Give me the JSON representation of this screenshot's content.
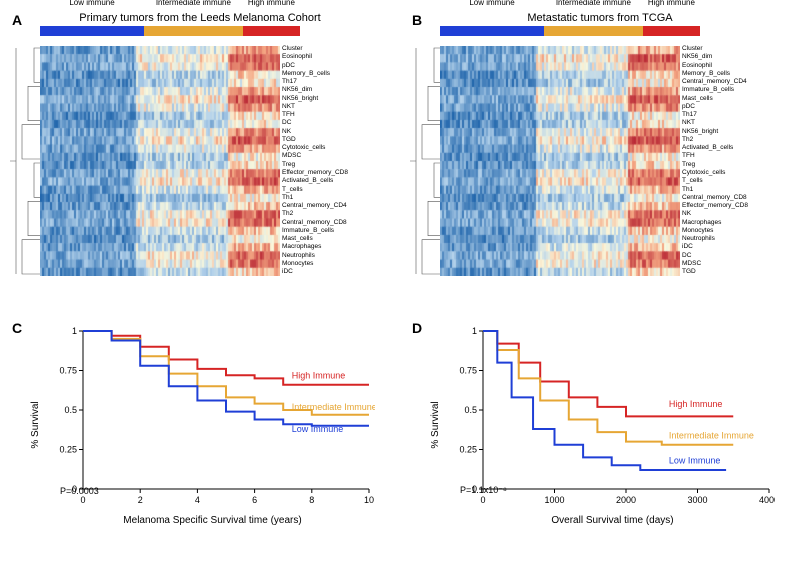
{
  "colors": {
    "low": "#1f3fd6",
    "intermediate": "#e6a634",
    "high": "#d62424",
    "heatmap_low": "#2166ac",
    "heatmap_midlow": "#92c5de",
    "heatmap_mid": "#f7f7e6",
    "heatmap_midhigh": "#f4a582",
    "heatmap_high": "#b2182b",
    "axis": "#000000"
  },
  "panelA": {
    "label": "A",
    "title": "Primary tumors from the Leeds Melanoma Cohort",
    "cluster_segments": [
      {
        "label": "Low immune",
        "frac": 0.4,
        "color_key": "low"
      },
      {
        "label": "Intermediate immune",
        "frac": 0.38,
        "color_key": "intermediate"
      },
      {
        "label": "High immune",
        "frac": 0.22,
        "color_key": "high"
      }
    ],
    "row_labels": [
      "Cluster",
      "Eosinophil",
      "pDC",
      "Memory_B_cells",
      "Th17",
      "NK56_dim",
      "NK56_bright",
      "NKT",
      "TFH",
      "DC",
      "NK",
      "TGD",
      "Cytotoxic_cells",
      "MDSC",
      "Treg",
      "Effector_memory_CD8",
      "Activated_B_cells",
      "T_cells",
      "Th1",
      "Central_memory_CD4",
      "Th2",
      "Central_memory_CD8",
      "Immature_B_cells",
      "Mast_cells",
      "Macrophages",
      "Neutrophils",
      "Monocytes",
      "iDC"
    ],
    "legend_ticks": [
      "4",
      "2",
      "0",
      "-2"
    ],
    "heatmap_cols": 120,
    "heatmap_rows": 28
  },
  "panelB": {
    "label": "B",
    "title": "Metastatic tumors from TCGA",
    "cluster_segments": [
      {
        "label": "Low immune",
        "frac": 0.4,
        "color_key": "low"
      },
      {
        "label": "Intermediate immune",
        "frac": 0.38,
        "color_key": "intermediate"
      },
      {
        "label": "High immune",
        "frac": 0.22,
        "color_key": "high"
      }
    ],
    "row_labels": [
      "Cluster",
      "NK56_dim",
      "Eosinophil",
      "Memory_B_cells",
      "Central_memory_CD4",
      "Immature_B_cells",
      "Mast_cells",
      "pDC",
      "Th17",
      "NKT",
      "NK56_bright",
      "Th2",
      "Activated_B_cells",
      "TFH",
      "Treg",
      "Cytotoxic_cells",
      "T_cells",
      "Th1",
      "Central_memory_CD8",
      "Effector_memory_CD8",
      "NK",
      "Macrophages",
      "Monocytes",
      "Neutrophils",
      "iDC",
      "DC",
      "MDSC",
      "TGD"
    ],
    "legend_ticks": [
      "4",
      "2",
      "0",
      "-2"
    ],
    "heatmap_cols": 120,
    "heatmap_rows": 28
  },
  "panelC": {
    "label": "C",
    "ylabel": "% Survival",
    "xlabel": "Melanoma Specific Survival time (years)",
    "pvalue": "P=0.0003",
    "xlim": [
      0,
      10
    ],
    "ylim": [
      0,
      1.0
    ],
    "xticks": [
      0,
      2,
      4,
      6,
      8,
      10
    ],
    "yticks": [
      0,
      0.25,
      0.5,
      0.75,
      1.0
    ],
    "curves": [
      {
        "name": "High Immune",
        "color_key": "high",
        "points": [
          [
            0,
            1.0
          ],
          [
            1,
            0.97
          ],
          [
            2,
            0.9
          ],
          [
            3,
            0.82
          ],
          [
            4,
            0.76
          ],
          [
            5,
            0.72
          ],
          [
            6,
            0.7
          ],
          [
            7,
            0.66
          ],
          [
            8,
            0.66
          ],
          [
            9,
            0.66
          ],
          [
            10,
            0.66
          ]
        ],
        "label_x": 7.3,
        "label_y": 0.7
      },
      {
        "name": "Intermediate Immune",
        "color_key": "intermediate",
        "points": [
          [
            0,
            1.0
          ],
          [
            1,
            0.95
          ],
          [
            2,
            0.84
          ],
          [
            3,
            0.73
          ],
          [
            4,
            0.65
          ],
          [
            5,
            0.58
          ],
          [
            6,
            0.54
          ],
          [
            7,
            0.5
          ],
          [
            8,
            0.47
          ],
          [
            9,
            0.47
          ],
          [
            10,
            0.47
          ]
        ],
        "label_x": 7.3,
        "label_y": 0.5
      },
      {
        "name": "Low Immune",
        "color_key": "low",
        "points": [
          [
            0,
            1.0
          ],
          [
            1,
            0.94
          ],
          [
            2,
            0.78
          ],
          [
            3,
            0.65
          ],
          [
            4,
            0.56
          ],
          [
            5,
            0.49
          ],
          [
            6,
            0.44
          ],
          [
            7,
            0.41
          ],
          [
            8,
            0.4
          ],
          [
            9,
            0.4
          ],
          [
            10,
            0.4
          ]
        ],
        "label_x": 7.3,
        "label_y": 0.36
      }
    ]
  },
  "panelD": {
    "label": "D",
    "ylabel": "% Survival",
    "xlabel": "Overall Survival time (days)",
    "pvalue": "P=1.1x10⁻⁸",
    "xlim": [
      0,
      4000
    ],
    "ylim": [
      0,
      1.0
    ],
    "xticks": [
      0,
      1000,
      2000,
      3000,
      4000
    ],
    "yticks": [
      0,
      0.25,
      0.5,
      0.75,
      1.0
    ],
    "curves": [
      {
        "name": "High Immune",
        "color_key": "high",
        "points": [
          [
            0,
            1.0
          ],
          [
            200,
            0.92
          ],
          [
            500,
            0.8
          ],
          [
            800,
            0.68
          ],
          [
            1200,
            0.58
          ],
          [
            1600,
            0.52
          ],
          [
            2000,
            0.46
          ],
          [
            2500,
            0.46
          ],
          [
            3000,
            0.46
          ],
          [
            3500,
            0.46
          ]
        ],
        "label_x": 2600,
        "label_y": 0.52
      },
      {
        "name": "Intermediate Immune",
        "color_key": "intermediate",
        "points": [
          [
            0,
            1.0
          ],
          [
            200,
            0.88
          ],
          [
            500,
            0.7
          ],
          [
            800,
            0.56
          ],
          [
            1200,
            0.44
          ],
          [
            1600,
            0.36
          ],
          [
            2000,
            0.3
          ],
          [
            2500,
            0.28
          ],
          [
            3000,
            0.28
          ],
          [
            3500,
            0.28
          ]
        ],
        "label_x": 2600,
        "label_y": 0.32
      },
      {
        "name": "Low Immune",
        "color_key": "low",
        "points": [
          [
            0,
            1.0
          ],
          [
            200,
            0.8
          ],
          [
            400,
            0.58
          ],
          [
            700,
            0.38
          ],
          [
            1000,
            0.28
          ],
          [
            1400,
            0.2
          ],
          [
            1800,
            0.15
          ],
          [
            2200,
            0.12
          ],
          [
            2800,
            0.12
          ],
          [
            3400,
            0.12
          ]
        ],
        "label_x": 2600,
        "label_y": 0.16
      }
    ]
  }
}
